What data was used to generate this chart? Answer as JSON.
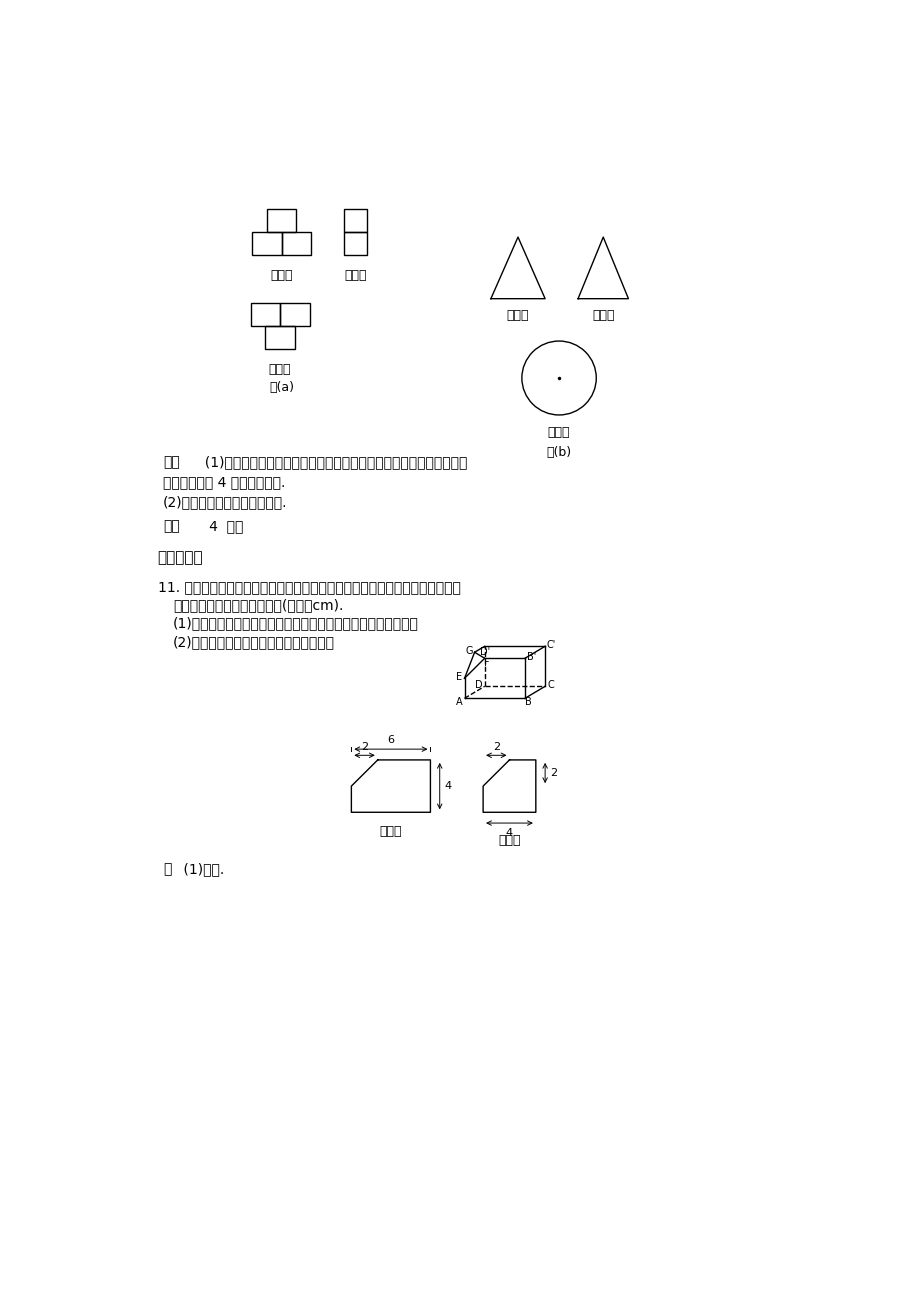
{
  "bg_color": "#ffffff",
  "text_color": "#000000",
  "fig_a_label": "图(a)",
  "fig_b_label": "图(b)",
  "label_zheng": "正视图",
  "label_ce": "侧视图",
  "label_fu": "俯视图",
  "section3_title": "三、解答题",
  "jiexi_bold": "解析",
  "jiexi_line1": "  (1)由三视图可知从正面看到三块，从侧面看到三块，结合俯视图可判",
  "jiexi_line2": "断几何体共由 4 块长方体组成.",
  "jiexi_line3": "(2)由三视图可知几何体为圆锥.",
  "daan_bold": "答案",
  "daan_text": "   4  圆锥",
  "q11_line1": "11. 如下的三个图中，上面的是一个长方体截去一个角所得多面体的直观图，它",
  "q11_line2": "的主视图和左视图在下面画出(单位：cm).",
  "q11_sub1": "(1)在主视图下面，按照画三视图的要求画出该多面体的俯视图；",
  "q11_sub2": "(2)按照给出的尺寸，求该多面体的体积；",
  "jie_bold": "解",
  "jie_text": " (1)如图."
}
